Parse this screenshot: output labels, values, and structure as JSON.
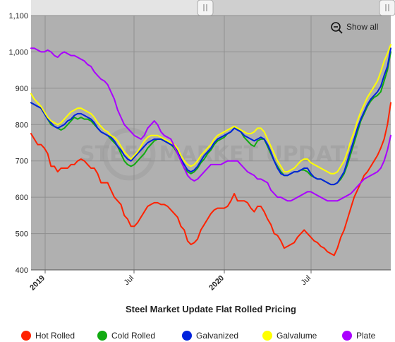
{
  "chart_data": {
    "type": "line",
    "title": "Steel Market Update Flat Rolled Pricing",
    "watermark": "STEEL MARKET UPDATE",
    "x_tick_labels": [
      "2019",
      "Jul",
      "2020",
      "Jul"
    ],
    "x_tick_bold": [
      true,
      false,
      true,
      false
    ],
    "ylim": [
      400,
      1100
    ],
    "y_ticks": [
      400,
      500,
      600,
      700,
      800,
      900,
      1000,
      1100
    ],
    "y_tick_labels": [
      "400",
      "500",
      "600",
      "700",
      "800",
      "900",
      "1,000",
      "1,100"
    ],
    "grid": true,
    "plot_background": "#b0b0b0",
    "legend_position": "bottom",
    "show_all_label": "Show all",
    "series": [
      {
        "name": "Hot Rolled",
        "color": "#ff2200",
        "values": [
          775,
          760,
          745,
          745,
          735,
          720,
          685,
          685,
          670,
          680,
          680,
          680,
          690,
          690,
          700,
          705,
          700,
          690,
          680,
          680,
          665,
          640,
          640,
          640,
          620,
          600,
          590,
          580,
          550,
          540,
          520,
          520,
          530,
          545,
          560,
          575,
          580,
          585,
          585,
          580,
          580,
          575,
          565,
          555,
          545,
          520,
          510,
          480,
          470,
          475,
          485,
          510,
          525,
          540,
          555,
          565,
          570,
          570,
          570,
          575,
          590,
          610,
          590,
          590,
          590,
          585,
          570,
          560,
          575,
          575,
          560,
          540,
          525,
          500,
          495,
          480,
          460,
          465,
          470,
          475,
          490,
          500,
          510,
          500,
          490,
          480,
          475,
          465,
          460,
          450,
          445,
          440,
          460,
          490,
          510,
          540,
          570,
          600,
          620,
          640,
          660,
          670,
          685,
          700,
          715,
          735,
          760,
          800,
          860
        ]
      },
      {
        "name": "Cold Rolled",
        "color": "#11aa11",
        "values": [
          860,
          855,
          850,
          845,
          830,
          815,
          800,
          795,
          790,
          785,
          790,
          800,
          810,
          820,
          815,
          820,
          815,
          815,
          810,
          800,
          790,
          780,
          775,
          770,
          760,
          750,
          740,
          720,
          700,
          690,
          685,
          690,
          700,
          710,
          720,
          735,
          745,
          755,
          760,
          760,
          755,
          750,
          745,
          735,
          720,
          700,
          680,
          670,
          665,
          670,
          680,
          695,
          705,
          720,
          730,
          745,
          755,
          760,
          765,
          775,
          780,
          790,
          790,
          780,
          765,
          755,
          745,
          740,
          755,
          760,
          760,
          740,
          720,
          700,
          685,
          670,
          660,
          660,
          665,
          670,
          670,
          675,
          675,
          670,
          660,
          655,
          650,
          650,
          645,
          640,
          635,
          635,
          640,
          650,
          665,
          690,
          720,
          750,
          780,
          810,
          830,
          850,
          865,
          875,
          880,
          890,
          920,
          950,
          1000
        ]
      },
      {
        "name": "Galvanized",
        "color": "#0022dd",
        "values": [
          860,
          855,
          850,
          845,
          830,
          815,
          805,
          795,
          790,
          795,
          800,
          810,
          815,
          825,
          830,
          830,
          825,
          820,
          815,
          805,
          790,
          780,
          775,
          770,
          765,
          755,
          740,
          730,
          715,
          705,
          700,
          710,
          720,
          730,
          740,
          750,
          755,
          760,
          760,
          760,
          755,
          750,
          745,
          740,
          725,
          705,
          690,
          675,
          670,
          675,
          685,
          700,
          715,
          725,
          735,
          750,
          760,
          765,
          770,
          775,
          780,
          790,
          785,
          780,
          770,
          765,
          760,
          755,
          760,
          765,
          760,
          745,
          725,
          700,
          680,
          665,
          660,
          660,
          665,
          670,
          670,
          675,
          680,
          680,
          665,
          655,
          650,
          650,
          645,
          640,
          635,
          635,
          640,
          655,
          670,
          700,
          730,
          760,
          790,
          815,
          835,
          855,
          870,
          880,
          890,
          905,
          935,
          960,
          1010
        ]
      },
      {
        "name": "Galvalume",
        "color": "#ffff00",
        "values": [
          885,
          870,
          860,
          850,
          835,
          820,
          810,
          805,
          800,
          805,
          815,
          825,
          835,
          840,
          845,
          845,
          840,
          835,
          830,
          820,
          805,
          795,
          785,
          780,
          770,
          765,
          755,
          740,
          725,
          715,
          705,
          715,
          725,
          740,
          755,
          765,
          770,
          770,
          770,
          765,
          760,
          755,
          750,
          745,
          735,
          715,
          700,
          690,
          685,
          690,
          700,
          715,
          725,
          735,
          745,
          760,
          770,
          775,
          780,
          785,
          790,
          795,
          790,
          785,
          780,
          775,
          775,
          780,
          790,
          790,
          780,
          760,
          740,
          720,
          700,
          685,
          670,
          670,
          675,
          680,
          690,
          700,
          705,
          705,
          695,
          690,
          685,
          680,
          675,
          670,
          665,
          665,
          670,
          685,
          700,
          725,
          755,
          780,
          810,
          835,
          855,
          875,
          890,
          905,
          920,
          945,
          975,
          995,
          1020
        ]
      },
      {
        "name": "Plate",
        "color": "#aa00ff",
        "values": [
          1010,
          1010,
          1005,
          1000,
          1000,
          1005,
          1000,
          990,
          985,
          995,
          1000,
          995,
          990,
          990,
          985,
          980,
          975,
          965,
          960,
          945,
          935,
          925,
          920,
          910,
          890,
          870,
          840,
          820,
          800,
          790,
          780,
          770,
          765,
          760,
          770,
          790,
          800,
          810,
          800,
          780,
          770,
          765,
          760,
          740,
          720,
          700,
          680,
          660,
          650,
          645,
          650,
          660,
          670,
          680,
          690,
          690,
          690,
          690,
          695,
          700,
          700,
          700,
          700,
          690,
          680,
          670,
          665,
          660,
          650,
          650,
          645,
          640,
          620,
          610,
          600,
          600,
          595,
          590,
          590,
          595,
          600,
          605,
          610,
          615,
          615,
          610,
          605,
          600,
          595,
          590,
          590,
          590,
          590,
          595,
          600,
          605,
          610,
          620,
          630,
          640,
          650,
          655,
          660,
          665,
          670,
          680,
          700,
          730,
          770
        ]
      }
    ]
  }
}
